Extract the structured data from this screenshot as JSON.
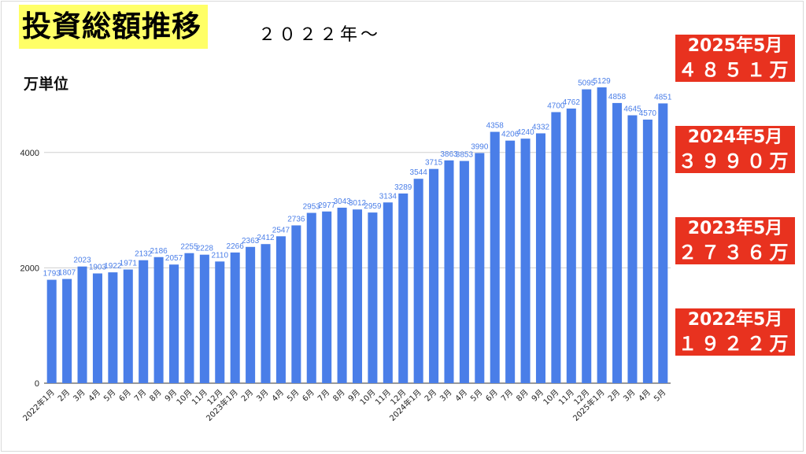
{
  "header": {
    "title": "投資総額推移",
    "subtitle": "２０２２年〜",
    "unit_label": "万単位"
  },
  "annotations": [
    {
      "line1": "2025年5月",
      "line2": "４８５１万"
    },
    {
      "line1": "2024年5月",
      "line2": "３９９０万"
    },
    {
      "line1": "2023年5月",
      "line2": "２７３６万"
    },
    {
      "line1": "2022年5月",
      "line2": "１９２２万"
    }
  ],
  "colors": {
    "bar": "#4a7ee8",
    "label": "#4a7ee8",
    "annotation_bg": "#e8321f",
    "title_bg": "#ffff66"
  },
  "chart_data": {
    "type": "bar",
    "title": "投資総額推移",
    "ylabel": "万単位",
    "ylim": [
      0,
      5500
    ],
    "yticks": [
      0,
      2000,
      4000
    ],
    "grid": true,
    "categories": [
      "2022年1月",
      "2月",
      "3月",
      "4月",
      "5月",
      "6月",
      "7月",
      "8月",
      "9月",
      "10月",
      "11月",
      "12月",
      "2023年1月",
      "2月",
      "3月",
      "4月",
      "5月",
      "6月",
      "7月",
      "8月",
      "9月",
      "10月",
      "11月",
      "12月",
      "2024年1月",
      "2月",
      "3月",
      "4月",
      "5月",
      "6月",
      "7月",
      "8月",
      "9月",
      "10月",
      "11月",
      "12月",
      "2025年1月",
      "2月",
      "3月",
      "4月",
      "5月"
    ],
    "values": [
      1793,
      1807,
      2023,
      1903,
      1922,
      1971,
      2132,
      2186,
      2057,
      2255,
      2228,
      2110,
      2266,
      2363,
      2412,
      2547,
      2736,
      2953,
      2977,
      3043,
      3012,
      2959,
      3134,
      3289,
      3544,
      3715,
      3863,
      3853,
      3990,
      4358,
      4206,
      4240,
      4332,
      4700,
      4762,
      5095,
      5129,
      4858,
      4645,
      4570,
      4851
    ],
    "value_labels": [
      "1793",
      "1807",
      "2023",
      "1903",
      "1922",
      "1971",
      "2132",
      "2186",
      "2057",
      "2255",
      "2228",
      "2110",
      "2266",
      "2363",
      "2412",
      "2547",
      "2736",
      "2953",
      "2977",
      "3043",
      "3012",
      "2959",
      "3134",
      "3289",
      "3544",
      "3715",
      "3863",
      "3853",
      "3990",
      "4358",
      "4206",
      "4240",
      "4332",
      "4700",
      "4762",
      "5095",
      "5129",
      "4858",
      "4645",
      "4570",
      "4851"
    ]
  }
}
